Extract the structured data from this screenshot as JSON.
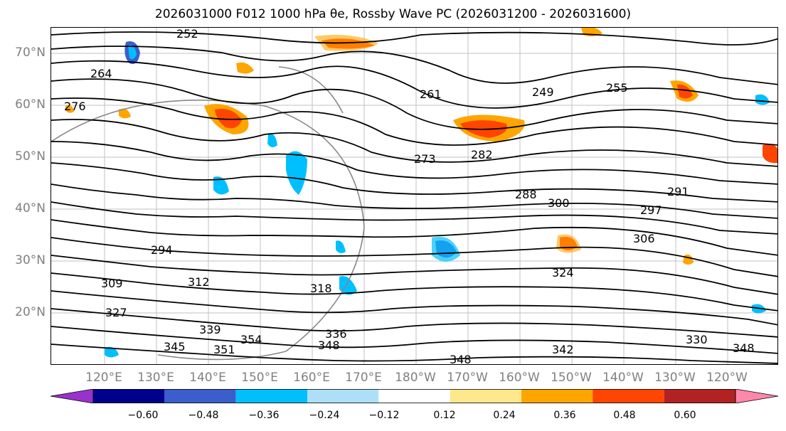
{
  "title": "2026031000 F012 1000 hPa θe, Rossby Wave PC (2026031200 - 2026031600)",
  "lat_labels": [
    "70°N",
    "60°N",
    "50°N",
    "40°N",
    "30°N",
    "20°N"
  ],
  "lon_labels": [
    "120°E",
    "130°E",
    "140°E",
    "150°E",
    "160°E",
    "170°E",
    "180°W",
    "170°W",
    "160°W",
    "150°W",
    "140°W",
    "130°W",
    "120°W"
  ],
  "contour_labels": [
    "252",
    "261",
    "249",
    "255",
    "276",
    "282",
    "288",
    "291",
    "297",
    "306",
    "300",
    "309",
    "312",
    "318",
    "327",
    "330",
    "339",
    "345",
    "348",
    "354",
    "342",
    "336",
    "351",
    "324",
    "294",
    "273",
    "264"
  ],
  "colorbar": {
    "ticks": [
      "−0.60",
      "−0.48",
      "−0.36",
      "−0.24",
      "−0.12",
      "0.12",
      "0.24",
      "0.36",
      "0.48",
      "0.60"
    ],
    "colors": [
      "#9932CC",
      "#00008B",
      "#3A5FCD",
      "#00BFFF",
      "#ADE0F8",
      "#FFFFFF",
      "#FFE88C",
      "#FFA500",
      "#FF4500",
      "#B22222",
      "#FF88AA"
    ]
  }
}
